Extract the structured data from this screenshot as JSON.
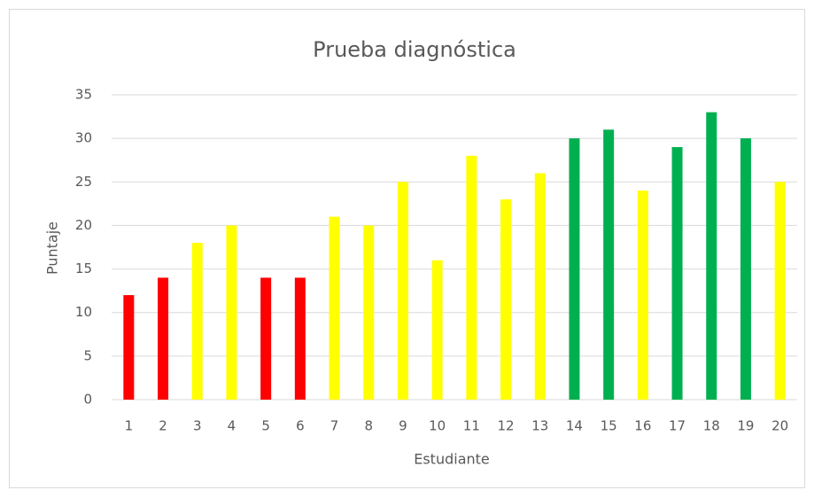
{
  "chart_data": {
    "type": "bar",
    "title": "Prueba diagnóstica",
    "x_label": "Estudiante",
    "y_label": "Puntaje",
    "categories": [
      "1",
      "2",
      "3",
      "4",
      "5",
      "6",
      "7",
      "8",
      "9",
      "10",
      "11",
      "12",
      "13",
      "14",
      "15",
      "16",
      "17",
      "18",
      "19",
      "20"
    ],
    "values": [
      12,
      14,
      18,
      20,
      14,
      14,
      21,
      20,
      25,
      16,
      28,
      23,
      26,
      30,
      31,
      24,
      29,
      33,
      30,
      25
    ],
    "colors": [
      "#ff0000",
      "#ff0000",
      "#ffff00",
      "#ffff00",
      "#ff0000",
      "#ff0000",
      "#ffff00",
      "#ffff00",
      "#ffff00",
      "#ffff00",
      "#ffff00",
      "#ffff00",
      "#ffff00",
      "#00b050",
      "#00b050",
      "#ffff00",
      "#00b050",
      "#00b050",
      "#00b050",
      "#ffff00"
    ],
    "ylim": [
      0,
      35
    ],
    "yticks": [
      0,
      5,
      10,
      15,
      20,
      25,
      30,
      35
    ],
    "grid": true
  }
}
